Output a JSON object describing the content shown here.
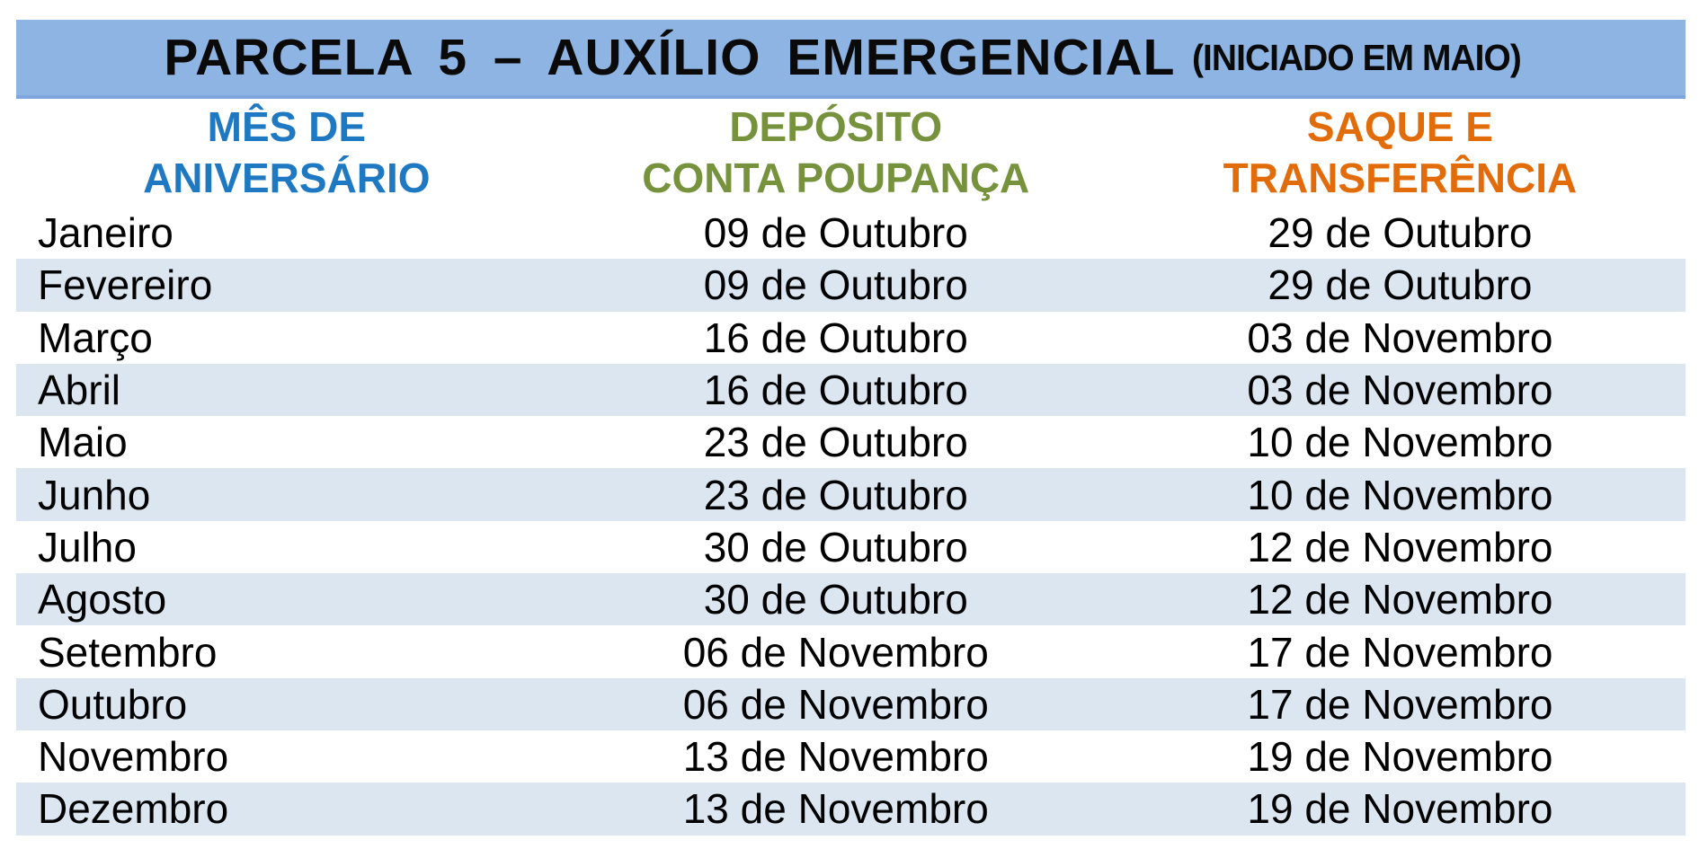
{
  "colors": {
    "title_bar_bg": "#8db4e2",
    "title_bar_border": "#7da6dc",
    "title_text": "#0a0a0a",
    "header_month": "#1e79c2",
    "header_deposit": "#76923c",
    "header_withdraw": "#e36c0a",
    "row_band": "#dce6f1",
    "row_text": "#000000",
    "page_bg": "#ffffff"
  },
  "title": {
    "main": "PARCELA 5 – AUXÍLIO EMERGENCIAL",
    "suffix": "(INICIADO EM MAIO)"
  },
  "table": {
    "headers": [
      "MÊS DE\nANIVERSÁRIO",
      "DEPÓSITO\nCONTA POUPANÇA",
      "SAQUE E\nTRANSFERÊNCIA"
    ]
  },
  "chart_data": {
    "type": "table",
    "title": "PARCELA 5 – AUXÍLIO EMERGENCIAL (INICIADO EM MAIO)",
    "columns": [
      "MÊS DE ANIVERSÁRIO",
      "DEPÓSITO CONTA POUPANÇA",
      "SAQUE E TRANSFERÊNCIA"
    ],
    "rows": [
      [
        "Janeiro",
        "09 de Outubro",
        "29 de Outubro"
      ],
      [
        "Fevereiro",
        "09 de Outubro",
        "29 de Outubro"
      ],
      [
        "Março",
        "16 de Outubro",
        "03 de Novembro"
      ],
      [
        "Abril",
        "16 de Outubro",
        "03 de Novembro"
      ],
      [
        "Maio",
        "23 de Outubro",
        "10 de Novembro"
      ],
      [
        "Junho",
        "23 de Outubro",
        "10 de Novembro"
      ],
      [
        "Julho",
        "30 de Outubro",
        "12 de Novembro"
      ],
      [
        "Agosto",
        "30 de Outubro",
        "12 de Novembro"
      ],
      [
        "Setembro",
        "06 de Novembro",
        "17 de Novembro"
      ],
      [
        "Outubro",
        "06 de Novembro",
        "17 de Novembro"
      ],
      [
        "Novembro",
        "13 de Novembro",
        "19 de Novembro"
      ],
      [
        "Dezembro",
        "13 de Novembro",
        "19 de Novembro"
      ]
    ]
  }
}
